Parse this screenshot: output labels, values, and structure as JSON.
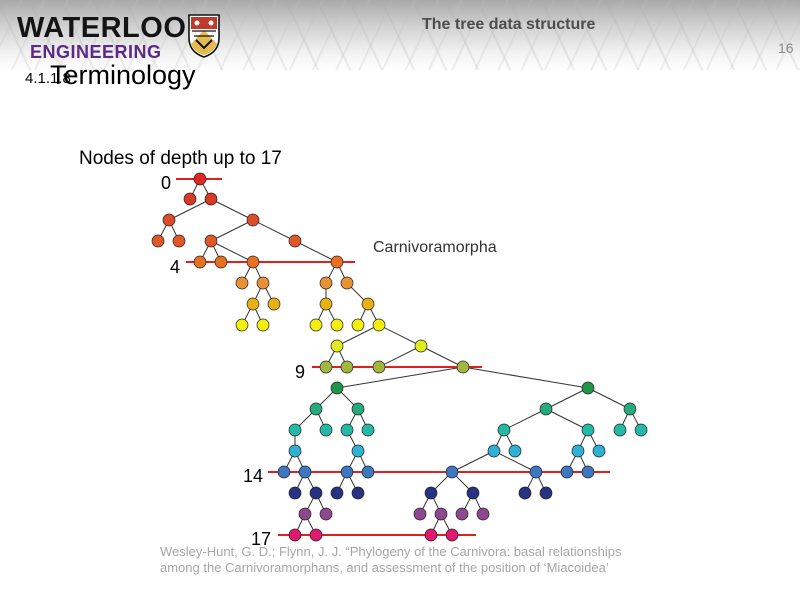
{
  "header": {
    "logo_word": "WATERLOO",
    "logo_sub": "ENGINEERING",
    "slide_title": "The tree data structure",
    "slide_number": "16"
  },
  "section": {
    "number": "4.1.1.8",
    "title": "Terminology"
  },
  "caption": "Nodes of depth up to 17",
  "tree": {
    "annotation": "Carnivoramorpha",
    "depth_markers": [
      "0",
      "4",
      "9",
      "14",
      "17"
    ]
  },
  "citation": {
    "line1": "Wesley-Hunt, G. D.; Flynn, J. J. “Phylogeny of the Carnivora: basal relationships",
    "line2": "among the Carnivoramorphans, and assessment of the position of ‘Miacoidea’"
  },
  "colors": {
    "depth_line": "#e0201e",
    "edge": "#333333",
    "logo_purple": "#5b2a86",
    "shield_red": "#c0392b",
    "shield_gold": "#e2b33c"
  }
}
